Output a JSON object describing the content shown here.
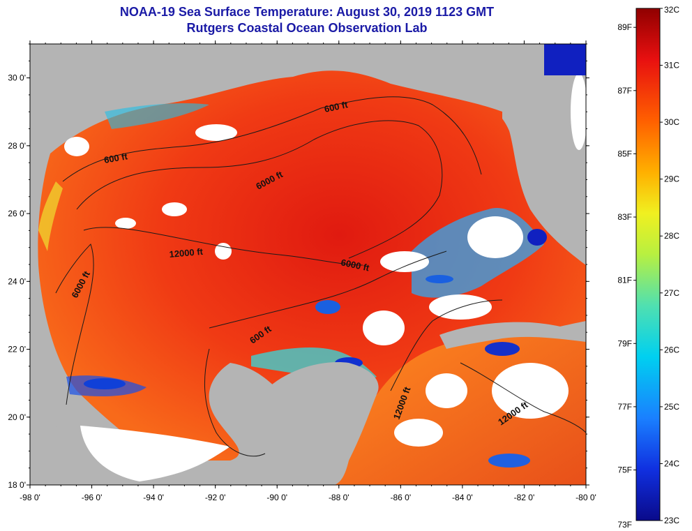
{
  "title_line1": "NOAA-19 Sea Surface Temperature:  August 30, 2019 1123 GMT",
  "title_line2": "Rutgers Coastal Ocean Observation Lab",
  "axes": {
    "longitude_labels": [
      "-98 0'",
      "-96 0'",
      "-94 0'",
      "-92 0'",
      "-90 0'",
      "-88 0'",
      "-86 0'",
      "-84 0'",
      "-82 0'",
      "-80 0'"
    ],
    "latitude_labels": [
      "30 0'",
      "28 0'",
      "26 0'",
      "24 0'",
      "22 0'",
      "20 0'",
      "18 0'"
    ],
    "lon_range": [
      -98,
      -80
    ],
    "lat_range": [
      18,
      31
    ]
  },
  "contour_labels": [
    {
      "id": "c600-ne",
      "text": "600 ft"
    },
    {
      "id": "c600-nw",
      "text": "600 ft"
    },
    {
      "id": "c6000-n",
      "text": "6000 ft"
    },
    {
      "id": "c12000-c",
      "text": "12000 ft"
    },
    {
      "id": "c6000-w",
      "text": "6000 ft"
    },
    {
      "id": "c6000-e",
      "text": "6000 ft"
    },
    {
      "id": "c600-s",
      "text": "600 ft"
    },
    {
      "id": "c12000-se",
      "text": "12000 ft"
    },
    {
      "id": "c12000-car",
      "text": "12000 ft"
    }
  ],
  "colorbar": {
    "fahrenheit_labels": [
      "89F",
      "87F",
      "85F",
      "83F",
      "81F",
      "79F",
      "77F",
      "75F",
      "73F"
    ],
    "celsius_labels": [
      "32C",
      "31C",
      "30C",
      "29C",
      "28C",
      "27C",
      "26C",
      "25C",
      "24C",
      "23C"
    ],
    "celsius_range": [
      23,
      32
    ],
    "colors": [
      "#0a0a8a",
      "#1030e0",
      "#1a80ff",
      "#00d0f0",
      "#50e0b0",
      "#b8f040",
      "#f0f020",
      "#ffb000",
      "#ff6000",
      "#e81010",
      "#900000"
    ]
  },
  "colors": {
    "land": "#b4b4b4",
    "cloud": "#ffffff",
    "title": "#1a1aa6"
  }
}
